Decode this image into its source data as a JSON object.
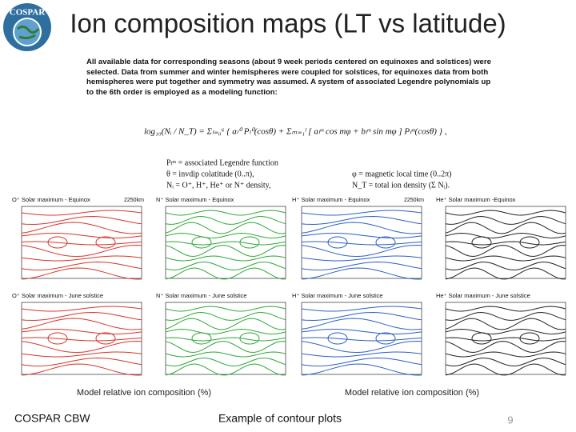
{
  "header": {
    "title": "Ion composition maps (LT vs latitude)",
    "logo": "COSPAR"
  },
  "body": {
    "paragraph": "All available data for corresponding seasons (about 9 week periods centered on equinoxes and solstices) were selected. Data from summer and winter hemispheres were coupled for solstices, for equinoxes data from both hemispheres were put together and symmetry was assumed. A system of associated Legendre polynomials up to the 6th order is employed as a modeling function:",
    "formula": "log₁₀(Nᵢ / N_T) = Σₗ₌₀⁶ { aₗ⁰ Pₗ⁰(cosθ) + Σₘ₌₁ˡ [ aₗᵐ cos mφ + bₗᵐ sin mφ ] Pₗᵐ(cosθ) } ,",
    "definitions": [
      "Pₗᵐ = associated Legendre function",
      "θ = invdip colatitude (0..π),",
      "φ = magnetic local time (0..2π)",
      "Nᵢ = O⁺, H⁺, He⁺ or N⁺ density,",
      "N_T = total ion density (Σ Nᵢ)."
    ]
  },
  "panels": [
    {
      "title": "O⁺ Solar maximum - Equinox",
      "altitude": "2250km"
    },
    {
      "title": "N⁺ Solar maximum - Equinox"
    },
    {
      "title": "H⁺ Solar maximum - Equinox",
      "altitude": "2250km"
    },
    {
      "title": "He⁺ Solar maximum -Equinox"
    },
    {
      "title": "O⁺ Solar maximum - June solstice"
    },
    {
      "title": "N⁺ Solar maximum - June solstice"
    },
    {
      "title": "H⁺ Solar maximum - June solstice"
    },
    {
      "title": "He⁺ Solar maximum - June solstice"
    }
  ],
  "captions": [
    "Model relative ion composition (%)",
    "Model relative ion composition (%)"
  ],
  "footer": {
    "left": "COSPAR CBW",
    "center": "Example of contour plots",
    "page": "9"
  }
}
